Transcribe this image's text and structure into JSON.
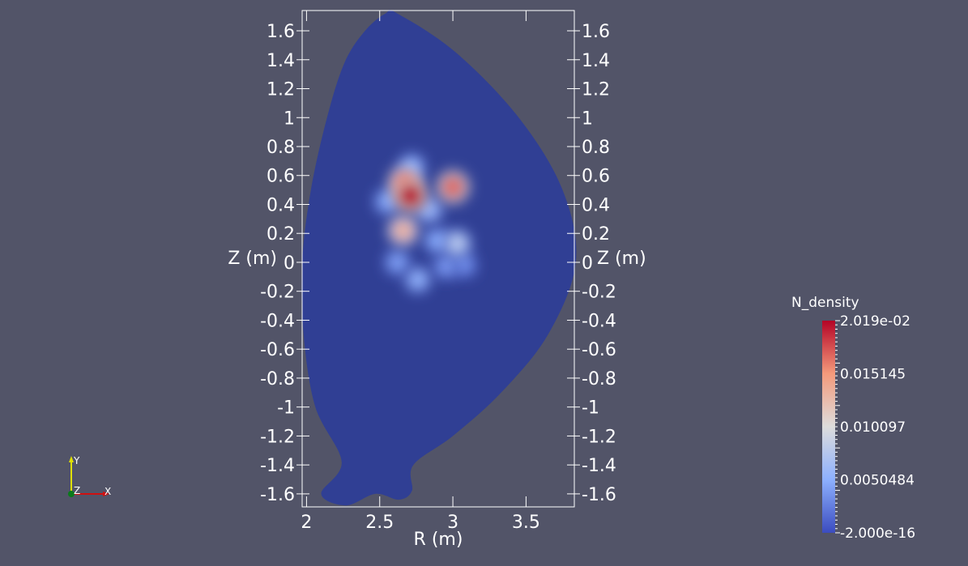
{
  "chart_data": {
    "type": "heatmap",
    "x_axis": {
      "label": "R (m)",
      "range": [
        1.97,
        3.83
      ],
      "ticks": [
        2,
        2.5,
        3,
        3.5
      ],
      "tick_labels": [
        "2",
        "2.5",
        "3",
        "3.5"
      ]
    },
    "y_axis": {
      "label_left": "Z (m)",
      "label_right": "Z (m)",
      "range": [
        -1.69,
        1.74
      ],
      "ticks": [
        1.6,
        1.4,
        1.2,
        1,
        0.8,
        0.6,
        0.4,
        0.2,
        0,
        -0.2,
        -0.4,
        -0.6,
        -0.8,
        -1,
        -1.2,
        -1.4,
        -1.6
      ],
      "tick_labels": [
        "1.6",
        "1.4",
        "1.2",
        "1",
        "0.8",
        "0.6",
        "0.4",
        "0.2",
        "0",
        "-0.2",
        "-0.4",
        "-0.6",
        "-0.8",
        "-1",
        "-1.2",
        "-1.4",
        "-1.6"
      ]
    },
    "colorbar": {
      "title": "N_density",
      "range": [
        -2e-16,
        0.02019
      ],
      "labels": [
        "2.019e-02",
        "0.015145",
        "0.010097",
        "0.0050484",
        "-2.000e-16"
      ],
      "colors": [
        "#b40426",
        "#f49a7b",
        "#dddcdc",
        "#8db0fe",
        "#3b4cc0"
      ]
    },
    "background_field_color": "#303f94",
    "boundary": [
      [
        2.54,
        1.72
      ],
      [
        2.4,
        1.6
      ],
      [
        2.26,
        1.38
      ],
      [
        2.14,
        1.0
      ],
      [
        2.03,
        0.5
      ],
      [
        1.97,
        0.0
      ],
      [
        1.98,
        -0.5
      ],
      [
        2.06,
        -1.0
      ],
      [
        2.24,
        -1.38
      ],
      [
        2.1,
        -1.6
      ],
      [
        2.27,
        -1.68
      ],
      [
        2.47,
        -1.6
      ],
      [
        2.63,
        -1.64
      ],
      [
        2.72,
        -1.58
      ],
      [
        2.73,
        -1.4
      ],
      [
        3.0,
        -1.2
      ],
      [
        3.33,
        -0.9
      ],
      [
        3.65,
        -0.5
      ],
      [
        3.84,
        0.0
      ],
      [
        3.75,
        0.5
      ],
      [
        3.45,
        1.0
      ],
      [
        3.02,
        1.45
      ],
      [
        2.62,
        1.72
      ]
    ],
    "hot_spots": [
      {
        "R": 2.71,
        "Z": 0.46,
        "value": 0.0202
      },
      {
        "R": 2.67,
        "Z": 0.55,
        "value": 0.0165
      },
      {
        "R": 3.0,
        "Z": 0.52,
        "value": 0.017
      },
      {
        "R": 2.66,
        "Z": 0.22,
        "value": 0.0135
      },
      {
        "R": 2.72,
        "Z": 0.66,
        "value": 0.0055
      },
      {
        "R": 2.84,
        "Z": 0.36,
        "value": 0.006
      },
      {
        "R": 3.03,
        "Z": 0.13,
        "value": 0.008
      },
      {
        "R": 2.89,
        "Z": 0.15,
        "value": 0.005
      },
      {
        "R": 2.62,
        "Z": 0.0,
        "value": 0.0045
      },
      {
        "R": 2.76,
        "Z": -0.12,
        "value": 0.0055
      },
      {
        "R": 2.95,
        "Z": -0.03,
        "value": 0.004
      },
      {
        "R": 3.08,
        "Z": -0.02,
        "value": 0.0035
      },
      {
        "R": 2.55,
        "Z": 0.42,
        "value": 0.005
      }
    ]
  },
  "orientation_axes": {
    "x_label": "X",
    "y_label": "Y",
    "z_label": "Z",
    "x_color": "#d01010",
    "y_color": "#e0e000",
    "z_color": "#0a7a1a"
  }
}
